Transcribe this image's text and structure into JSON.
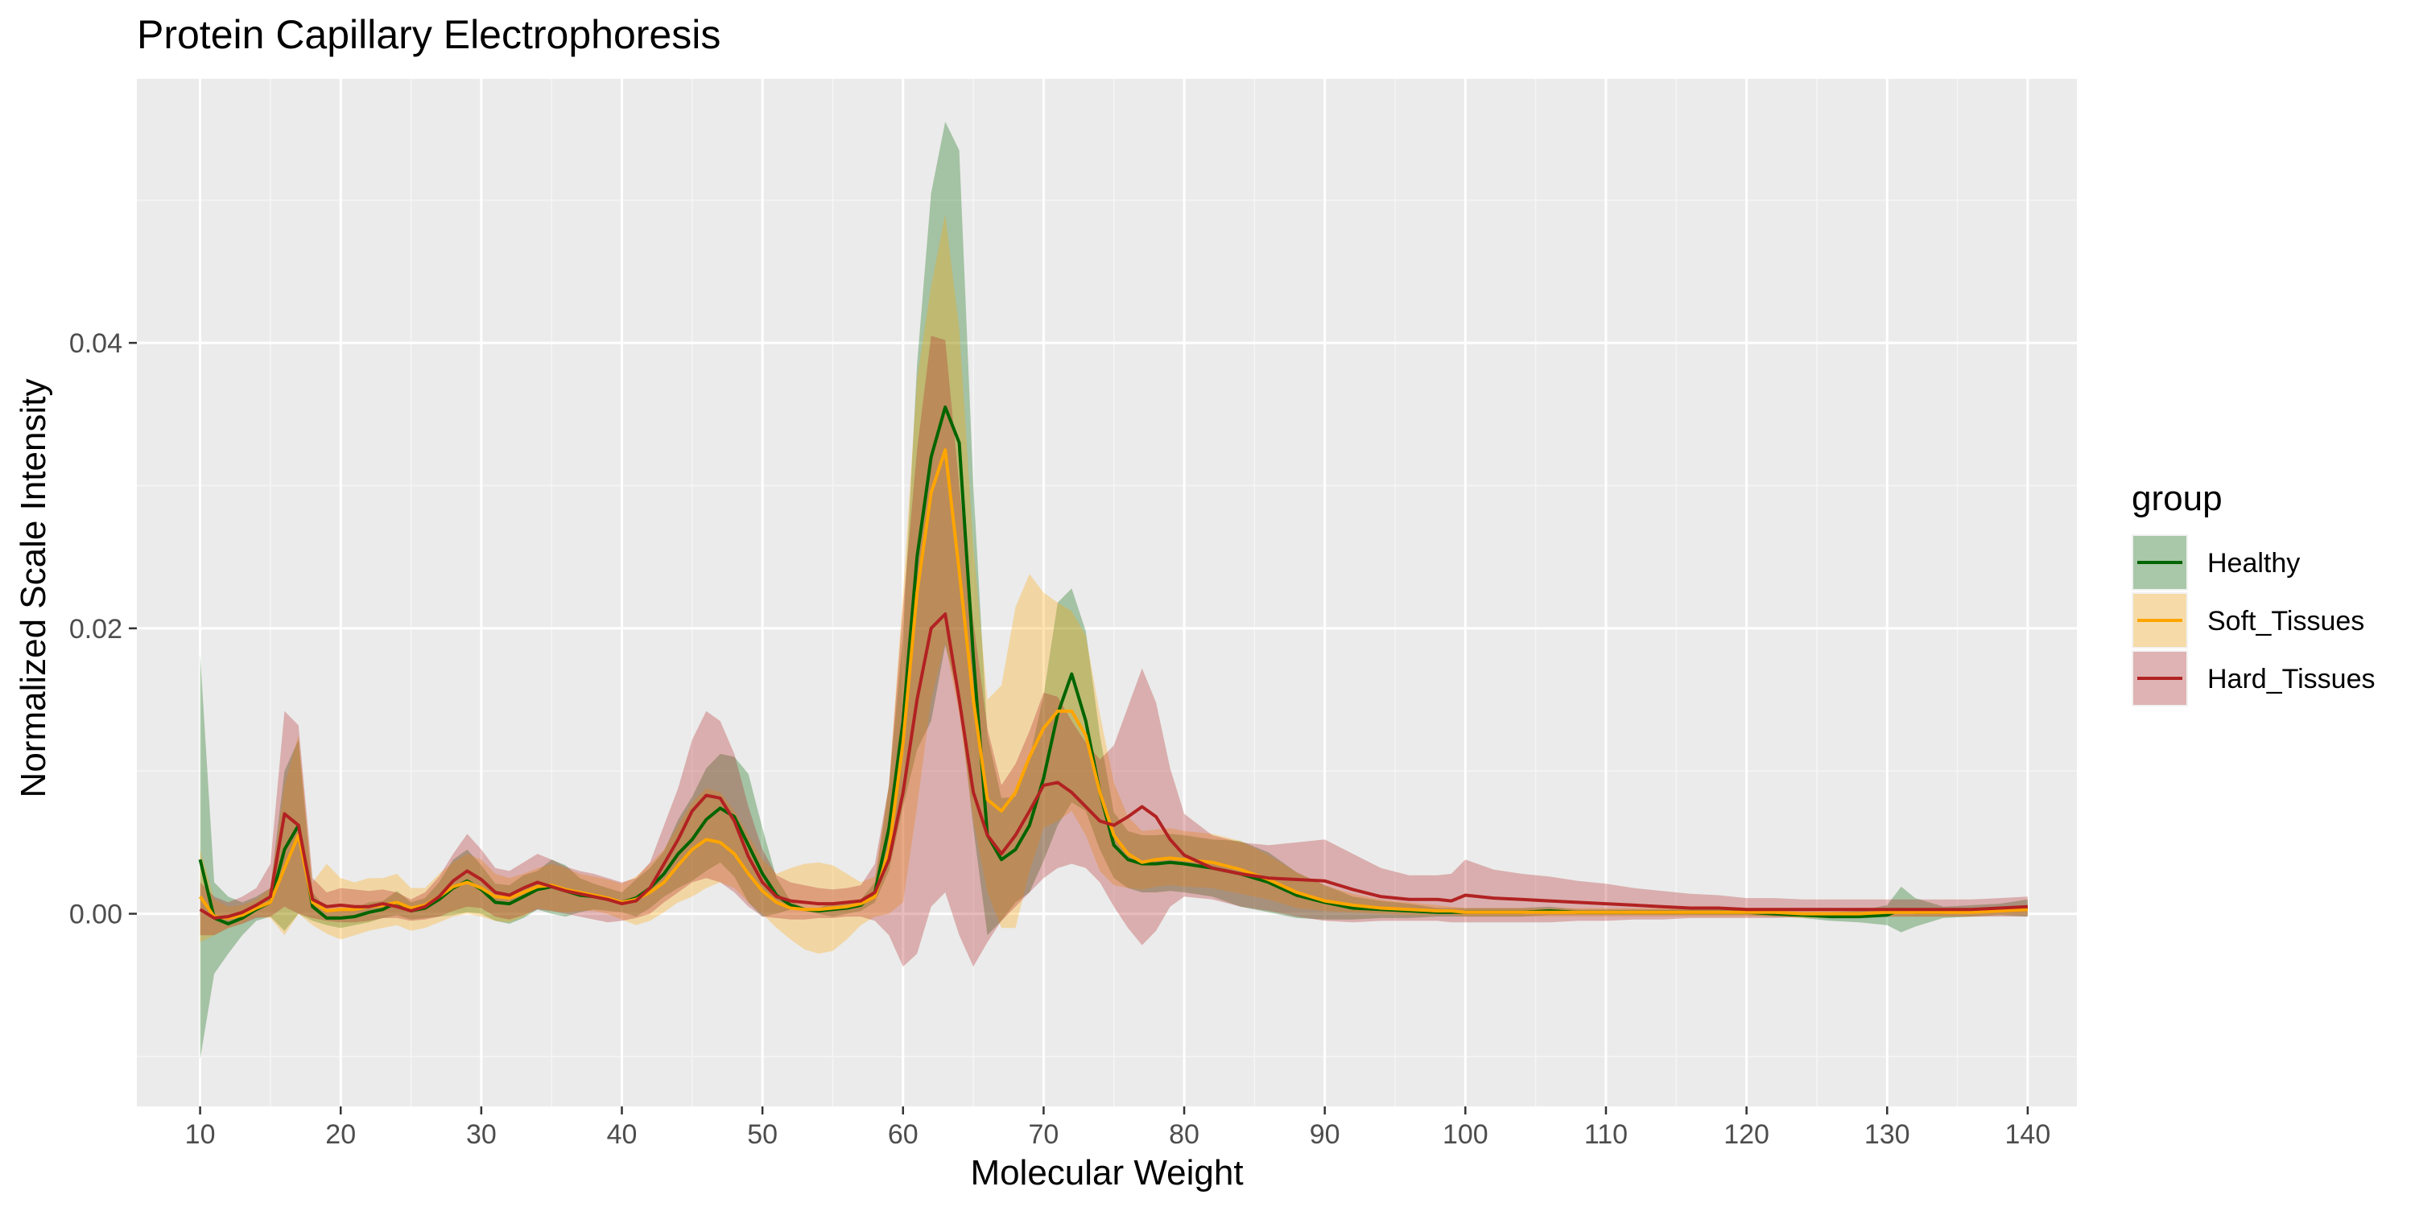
{
  "chart_data": {
    "type": "line",
    "title": "Protein Capillary Electrophoresis",
    "xlabel": "Molecular Weight",
    "ylabel": "Normalized Scale Intensity",
    "xlim": [
      5.5,
      143.5
    ],
    "ylim": [
      -0.0135,
      0.0585
    ],
    "x_ticks": [
      10,
      20,
      30,
      40,
      50,
      60,
      70,
      80,
      90,
      100,
      110,
      120,
      130,
      140
    ],
    "y_ticks": [
      0.0,
      0.02,
      0.04
    ],
    "y_tick_labels": [
      "0.00",
      "0.02",
      "0.04"
    ],
    "grid": true,
    "background": "#ebebeb",
    "legend": {
      "title": "group",
      "position": "right"
    },
    "x": [
      10,
      11,
      12,
      13,
      14,
      15,
      16,
      17,
      18,
      19,
      20,
      21,
      22,
      23,
      24,
      25,
      26,
      27,
      28,
      29,
      30,
      31,
      32,
      33,
      34,
      35,
      36,
      37,
      38,
      39,
      40,
      41,
      42,
      43,
      44,
      45,
      46,
      47,
      48,
      49,
      50,
      51,
      52,
      53,
      54,
      55,
      56,
      57,
      58,
      59,
      60,
      61,
      62,
      63,
      64,
      65,
      66,
      67,
      68,
      69,
      70,
      71,
      72,
      73,
      74,
      75,
      76,
      77,
      78,
      79,
      80,
      82,
      84,
      86,
      88,
      90,
      92,
      94,
      96,
      98,
      99,
      100,
      102,
      104,
      106,
      108,
      110,
      112,
      114,
      116,
      118,
      120,
      122,
      124,
      126,
      128,
      130,
      131,
      132,
      134,
      136,
      138,
      140
    ],
    "series": [
      {
        "name": "Healthy",
        "color": "#006400",
        "values": [
          0.0038,
          -0.0003,
          -0.0007,
          -0.0003,
          0.0003,
          0.0008,
          0.0045,
          0.0062,
          0.0005,
          -0.0003,
          -0.0003,
          -0.0002,
          0.0001,
          0.0003,
          0.0008,
          0.0002,
          0.0004,
          0.001,
          0.0018,
          0.0023,
          0.0017,
          0.0008,
          0.0007,
          0.0012,
          0.0017,
          0.0019,
          0.0016,
          0.0013,
          0.0012,
          0.001,
          0.0008,
          0.0011,
          0.0018,
          0.0028,
          0.0042,
          0.0052,
          0.0066,
          0.0074,
          0.0068,
          0.0048,
          0.0028,
          0.0013,
          0.0006,
          0.0003,
          0.0002,
          0.0003,
          0.0004,
          0.0006,
          0.0015,
          0.006,
          0.0135,
          0.025,
          0.032,
          0.0355,
          0.033,
          0.018,
          0.0055,
          0.0038,
          0.0045,
          0.0062,
          0.0095,
          0.014,
          0.0168,
          0.0135,
          0.0085,
          0.0048,
          0.0038,
          0.0035,
          0.0035,
          0.0036,
          0.0035,
          0.0032,
          0.0028,
          0.0022,
          0.0013,
          0.0008,
          0.0004,
          0.0003,
          0.0002,
          0.0001,
          0.0001,
          0.0001,
          0.0001,
          0.0001,
          0.0002,
          0.0001,
          0.0001,
          0.0001,
          0.0001,
          0.0001,
          0.0001,
          0.0001,
          0.0,
          -0.0001,
          -0.0002,
          -0.0002,
          -0.0001,
          0.0003,
          0.0001,
          0.0001,
          0.0002,
          0.0003,
          0.0004
        ],
        "lower": [
          -0.0102,
          -0.0042,
          -0.0028,
          -0.0015,
          -0.0005,
          -0.0002,
          -0.0012,
          0.0,
          -0.0005,
          -0.0008,
          -0.001,
          -0.0008,
          -0.0006,
          -0.0003,
          -0.0001,
          -0.0004,
          -0.0003,
          -0.0002,
          -0.0001,
          0.0001,
          0.0,
          -0.0005,
          -0.0007,
          -0.0003,
          0.0003,
          0.0,
          -0.0002,
          0.0001,
          0.0003,
          0.0002,
          0.0001,
          -0.0002,
          0.0004,
          0.0012,
          0.0018,
          0.0023,
          0.003,
          0.0036,
          0.0026,
          0.0008,
          -0.0002,
          0.0,
          0.0003,
          0.0002,
          0.0,
          -0.0002,
          0.0,
          0.0002,
          0.0008,
          0.003,
          0.0075,
          0.0115,
          0.0135,
          0.0188,
          0.015,
          0.006,
          -0.0015,
          -0.0005,
          0.0008,
          0.0015,
          0.0037,
          0.0062,
          0.0078,
          0.0072,
          0.0045,
          0.0025,
          0.0018,
          0.0015,
          0.0015,
          0.0016,
          0.0015,
          0.0012,
          0.0005,
          0.0001,
          -0.0003,
          -0.0004,
          -0.0004,
          -0.0003,
          -0.0003,
          -0.0002,
          -0.0002,
          -0.0002,
          -0.0002,
          -0.0002,
          -0.0001,
          -0.0001,
          -0.0001,
          -0.0001,
          -0.0001,
          -0.0001,
          -0.0001,
          -0.0001,
          -0.0002,
          -0.0003,
          -0.0005,
          -0.0006,
          -0.0008,
          -0.0013,
          -0.0009,
          -0.0003,
          -0.0002,
          -0.0001,
          -0.0002
        ],
        "upper": [
          0.0182,
          0.0022,
          0.0012,
          0.0008,
          0.0012,
          0.0018,
          0.01,
          0.0122,
          0.0015,
          0.0003,
          0.0004,
          0.0004,
          0.0008,
          0.0009,
          0.0016,
          0.0008,
          0.0011,
          0.0022,
          0.0038,
          0.0045,
          0.0034,
          0.0021,
          0.002,
          0.0027,
          0.003,
          0.0038,
          0.0034,
          0.0025,
          0.0021,
          0.0018,
          0.0015,
          0.0024,
          0.0032,
          0.0044,
          0.0066,
          0.0082,
          0.0102,
          0.0112,
          0.011,
          0.0098,
          0.006,
          0.0025,
          0.0009,
          0.0004,
          0.0004,
          0.0008,
          0.0008,
          0.001,
          0.0022,
          0.009,
          0.0195,
          0.0385,
          0.0505,
          0.0555,
          0.0535,
          0.03,
          0.0125,
          0.0081,
          0.0082,
          0.0109,
          0.0153,
          0.0218,
          0.0228,
          0.0198,
          0.0125,
          0.0071,
          0.0058,
          0.0055,
          0.0055,
          0.0056,
          0.0055,
          0.0052,
          0.0051,
          0.0043,
          0.0029,
          0.002,
          0.0012,
          0.0009,
          0.0007,
          0.0004,
          0.0004,
          0.0004,
          0.0004,
          0.0004,
          0.0005,
          0.0003,
          0.0003,
          0.0003,
          0.0003,
          0.0003,
          0.0003,
          0.0003,
          0.0002,
          0.0001,
          0.0001,
          0.0002,
          0.0006,
          0.0019,
          0.0011,
          0.0005,
          0.0006,
          0.0007,
          0.001
        ]
      },
      {
        "name": "Soft_Tissues",
        "color": "#ffa500",
        "values": [
          0.0012,
          -0.0002,
          -0.0003,
          -0.0001,
          0.0004,
          0.0008,
          0.0032,
          0.0055,
          0.0008,
          0.0002,
          0.0003,
          0.0003,
          0.0005,
          0.0006,
          0.0008,
          0.0004,
          0.0006,
          0.0012,
          0.0019,
          0.0022,
          0.0018,
          0.0012,
          0.0011,
          0.0015,
          0.0019,
          0.002,
          0.0017,
          0.0015,
          0.0013,
          0.0011,
          0.0008,
          0.001,
          0.0015,
          0.0022,
          0.0034,
          0.0045,
          0.0052,
          0.005,
          0.0042,
          0.0028,
          0.0016,
          0.0008,
          0.0004,
          0.0003,
          0.0003,
          0.0004,
          0.0005,
          0.0007,
          0.0012,
          0.0045,
          0.012,
          0.0225,
          0.0295,
          0.0325,
          0.024,
          0.015,
          0.008,
          0.0072,
          0.0085,
          0.011,
          0.013,
          0.0142,
          0.0142,
          0.0125,
          0.0085,
          0.0055,
          0.0042,
          0.0036,
          0.0038,
          0.0039,
          0.0038,
          0.0036,
          0.0031,
          0.0024,
          0.0015,
          0.0009,
          0.0006,
          0.0004,
          0.0003,
          0.0002,
          0.0002,
          0.0001,
          0.0001,
          0.0001,
          0.0001,
          0.0001,
          0.0001,
          0.0001,
          0.0001,
          0.0001,
          0.0001,
          0.0001,
          0.0001,
          0.0,
          0.0,
          0.0,
          0.0001,
          0.0001,
          0.0001,
          0.0001,
          0.0001,
          0.0002,
          0.0003
        ],
        "lower": [
          -0.002,
          -0.0015,
          -0.001,
          -0.0007,
          -0.0002,
          -0.0003,
          -0.0015,
          0.0,
          -0.0008,
          -0.0014,
          -0.0018,
          -0.0015,
          -0.0012,
          -0.001,
          -0.0008,
          -0.0012,
          -0.001,
          -0.0006,
          -0.0002,
          0.0,
          -0.0002,
          -0.0005,
          -0.0006,
          -0.0002,
          0.0004,
          0.0002,
          0.0001,
          0.0002,
          0.0002,
          0.0,
          -0.0004,
          -0.0008,
          -0.0005,
          0.0001,
          0.0008,
          0.0012,
          0.0018,
          0.0022,
          0.0018,
          0.0008,
          0.0,
          -0.001,
          -0.0018,
          -0.0025,
          -0.0028,
          -0.0026,
          -0.0018,
          -0.0008,
          -0.0002,
          0.0,
          0.0008,
          0.0075,
          0.015,
          0.019,
          0.014,
          0.0065,
          0.0015,
          -0.001,
          -0.001,
          0.003,
          0.006,
          0.0065,
          0.0072,
          0.0055,
          0.003,
          0.002,
          0.0018,
          0.0017,
          0.0019,
          0.002,
          0.0019,
          0.0018,
          0.0014,
          0.001,
          0.0004,
          0.0002,
          0.0001,
          0.0,
          -0.0001,
          -0.0001,
          -0.0001,
          -0.0002,
          -0.0002,
          -0.0002,
          -0.0002,
          -0.0002,
          -0.0002,
          -0.0002,
          -0.0002,
          -0.0002,
          -0.0002,
          -0.0002,
          -0.0002,
          -0.0003,
          -0.0003,
          -0.0003,
          -0.0002,
          -0.0002,
          -0.0002,
          -0.0002,
          -0.0002,
          -0.0001,
          -0.0001
        ],
        "upper": [
          0.0045,
          0.001,
          0.0005,
          0.0006,
          0.001,
          0.0018,
          0.009,
          0.0125,
          0.0022,
          0.0035,
          0.0025,
          0.0022,
          0.0025,
          0.0025,
          0.0028,
          0.0018,
          0.0018,
          0.0028,
          0.0036,
          0.0042,
          0.0038,
          0.0028,
          0.0025,
          0.0028,
          0.0032,
          0.0035,
          0.0032,
          0.0028,
          0.0026,
          0.0024,
          0.0021,
          0.0026,
          0.0035,
          0.0045,
          0.0062,
          0.0078,
          0.0088,
          0.0085,
          0.0072,
          0.0055,
          0.0038,
          0.0028,
          0.0032,
          0.0035,
          0.0036,
          0.0034,
          0.0028,
          0.0022,
          0.0026,
          0.009,
          0.0225,
          0.0375,
          0.044,
          0.049,
          0.041,
          0.0258,
          0.015,
          0.016,
          0.0215,
          0.0238,
          0.0225,
          0.0218,
          0.0212,
          0.0195,
          0.014,
          0.0092,
          0.0068,
          0.0058,
          0.0059,
          0.006,
          0.0058,
          0.0056,
          0.0051,
          0.0041,
          0.0029,
          0.002,
          0.0014,
          0.001,
          0.0008,
          0.0006,
          0.0005,
          0.0004,
          0.0004,
          0.0004,
          0.0004,
          0.0004,
          0.0004,
          0.0004,
          0.0004,
          0.0004,
          0.0004,
          0.0004,
          0.0004,
          0.0003,
          0.0003,
          0.0003,
          0.0004,
          0.0004,
          0.0004,
          0.0004,
          0.0004,
          0.0005,
          0.0006
        ]
      },
      {
        "name": "Hard_Tissues",
        "color": "#b22222",
        "values": [
          0.0003,
          -0.0003,
          -0.0002,
          0.0001,
          0.0006,
          0.0012,
          0.007,
          0.0062,
          0.001,
          0.0005,
          0.0006,
          0.0005,
          0.0005,
          0.0007,
          0.0005,
          0.0002,
          0.0005,
          0.0012,
          0.0023,
          0.003,
          0.0024,
          0.0015,
          0.0013,
          0.0018,
          0.0022,
          0.0019,
          0.0016,
          0.0014,
          0.0012,
          0.001,
          0.0007,
          0.0009,
          0.0018,
          0.0035,
          0.0052,
          0.0072,
          0.0083,
          0.0081,
          0.0065,
          0.004,
          0.0022,
          0.0012,
          0.0009,
          0.0008,
          0.0007,
          0.0007,
          0.0008,
          0.0009,
          0.0015,
          0.0038,
          0.0085,
          0.015,
          0.02,
          0.021,
          0.015,
          0.0085,
          0.0055,
          0.0042,
          0.0055,
          0.0072,
          0.009,
          0.0092,
          0.0085,
          0.0075,
          0.0065,
          0.0062,
          0.0068,
          0.0075,
          0.0068,
          0.0052,
          0.0041,
          0.0032,
          0.0028,
          0.0025,
          0.0024,
          0.0023,
          0.0017,
          0.0012,
          0.001,
          0.001,
          0.0009,
          0.0013,
          0.0011,
          0.001,
          0.0009,
          0.0008,
          0.0007,
          0.0006,
          0.0005,
          0.0004,
          0.0004,
          0.0003,
          0.0003,
          0.0003,
          0.0003,
          0.0003,
          0.0003,
          0.0003,
          0.0003,
          0.0003,
          0.0003,
          0.0004,
          0.0005
        ],
        "lower": [
          -0.0015,
          -0.0015,
          -0.001,
          -0.0007,
          -0.0003,
          -0.0002,
          0.0005,
          0.0,
          -0.0003,
          -0.0005,
          -0.0006,
          -0.0006,
          -0.0005,
          -0.0003,
          -0.0003,
          -0.0005,
          -0.0004,
          -0.0002,
          0.0002,
          0.0005,
          0.0004,
          -0.0002,
          -0.0004,
          -0.0001,
          0.0003,
          0.0002,
          0.0,
          -0.0002,
          -0.0004,
          -0.0006,
          -0.0005,
          -0.0003,
          0.0,
          0.0008,
          0.0015,
          0.0022,
          0.0025,
          0.0022,
          0.0015,
          0.0005,
          -0.0002,
          -0.0003,
          -0.0004,
          -0.0004,
          -0.0003,
          -0.0003,
          -0.0002,
          -0.0002,
          -0.0005,
          -0.0015,
          -0.0037,
          -0.0028,
          0.0005,
          0.0015,
          -0.0015,
          -0.0037,
          -0.002,
          -0.0005,
          0.0005,
          0.0015,
          0.0025,
          0.0032,
          0.0035,
          0.0032,
          0.0022,
          0.0005,
          -0.001,
          -0.0022,
          -0.0012,
          0.0005,
          0.0012,
          0.001,
          0.0005,
          0.0002,
          -0.0002,
          -0.0005,
          -0.0006,
          -0.0005,
          -0.0005,
          -0.0005,
          -0.0006,
          -0.0006,
          -0.0006,
          -0.0006,
          -0.0006,
          -0.0005,
          -0.0005,
          -0.0004,
          -0.0004,
          -0.0003,
          -0.0003,
          -0.0003,
          -0.0003,
          -0.0002,
          -0.0002,
          -0.0002,
          -0.0002,
          -0.0002,
          -0.0002,
          -0.0002,
          -0.0002,
          -0.0002,
          -0.0002
        ],
        "upper": [
          0.0022,
          0.0012,
          0.0008,
          0.0012,
          0.0018,
          0.0035,
          0.0142,
          0.0132,
          0.0025,
          0.0015,
          0.0018,
          0.0017,
          0.0016,
          0.0017,
          0.0015,
          0.001,
          0.0015,
          0.0026,
          0.0042,
          0.0056,
          0.0045,
          0.0032,
          0.003,
          0.0036,
          0.0042,
          0.0038,
          0.0033,
          0.003,
          0.0028,
          0.0025,
          0.0022,
          0.0025,
          0.0036,
          0.0062,
          0.0088,
          0.0122,
          0.0142,
          0.0135,
          0.0112,
          0.0075,
          0.0045,
          0.0027,
          0.0022,
          0.002,
          0.0018,
          0.0017,
          0.0018,
          0.002,
          0.0035,
          0.009,
          0.0215,
          0.0325,
          0.0405,
          0.0402,
          0.03,
          0.0205,
          0.013,
          0.009,
          0.0105,
          0.0128,
          0.0155,
          0.0152,
          0.0135,
          0.012,
          0.0108,
          0.0118,
          0.0145,
          0.0172,
          0.0148,
          0.0102,
          0.007,
          0.0055,
          0.005,
          0.0048,
          0.005,
          0.0052,
          0.0042,
          0.0032,
          0.0027,
          0.0027,
          0.0028,
          0.0038,
          0.0031,
          0.0028,
          0.0026,
          0.0023,
          0.0021,
          0.0018,
          0.0016,
          0.0014,
          0.0013,
          0.0011,
          0.0011,
          0.001,
          0.001,
          0.001,
          0.001,
          0.001,
          0.001,
          0.001,
          0.001,
          0.0011,
          0.0012
        ]
      }
    ]
  }
}
